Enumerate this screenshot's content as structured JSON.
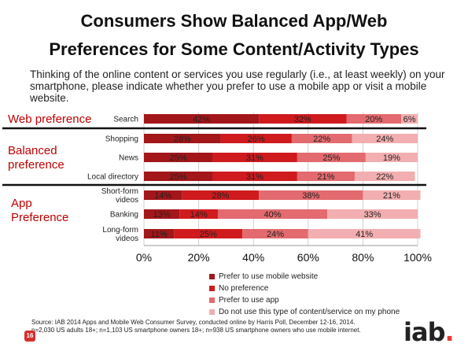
{
  "title_line1": "Consumers Show Balanced App/Web",
  "title_line2": "Preferences for Some Content/Activity Types",
  "question": "Thinking of the online content or services you use regularly (i.e., at least weekly) on your smartphone, please indicate whether you prefer to use a mobile app or visit a mobile website.",
  "groups": {
    "web": "Web preference",
    "balanced_1": "Balanced",
    "balanced_2": "preference",
    "app_1": "App",
    "app_2": "Preference"
  },
  "chart_data": {
    "type": "bar",
    "orientation": "horizontal",
    "stacked": true,
    "categories": [
      [
        "Search"
      ],
      [
        "Shopping"
      ],
      [
        "News"
      ],
      [
        "Local directory"
      ],
      [
        "Short-form",
        "videos"
      ],
      [
        "Banking"
      ],
      [
        "Long-form",
        "videos"
      ]
    ],
    "series": [
      {
        "name": "Prefer to use mobile website",
        "values": [
          42,
          28,
          25,
          25,
          14,
          13,
          11
        ],
        "color": "#a3161a"
      },
      {
        "name": "No preference",
        "values": [
          32,
          26,
          31,
          31,
          28,
          14,
          25
        ],
        "color": "#cf1a1e"
      },
      {
        "name": "Prefer to use app",
        "values": [
          20,
          22,
          25,
          21,
          38,
          40,
          24
        ],
        "color": "#e36a6e"
      },
      {
        "name": "Do not use this type of content/service on my phone",
        "values": [
          6,
          24,
          19,
          22,
          21,
          33,
          41
        ],
        "color": "#f2aeb0"
      }
    ],
    "data_labels": [
      [
        "42%",
        "32%",
        "20%",
        "6%"
      ],
      [
        "28%",
        "26%",
        "22%",
        "24%"
      ],
      [
        "25%",
        "31%",
        "25%",
        "19%"
      ],
      [
        "25%",
        "31%",
        "21%",
        "22%"
      ],
      [
        "14%",
        "28%",
        "38%",
        "21%"
      ],
      [
        "13%",
        "14%",
        "40%",
        "33%"
      ],
      [
        "11%",
        "25%",
        "24%",
        "41%"
      ]
    ],
    "xlim": [
      0,
      100
    ],
    "xticks": [
      "0%",
      "20%",
      "40%",
      "60%",
      "80%",
      "100%"
    ],
    "legend_position": "bottom",
    "grid": true
  },
  "source": "Source:  IAB 2014 Apps and Mobile Web Consumer Survey, conducted online by Harris Poll, December 12-16, 2014.  n=2,030 US adults 18+; n=1,103 US smartphone owners 18+; n=938 US smartphone owners who use mobile internet.",
  "page_number": "16",
  "logo": {
    "text": "iab",
    "dot": "."
  }
}
